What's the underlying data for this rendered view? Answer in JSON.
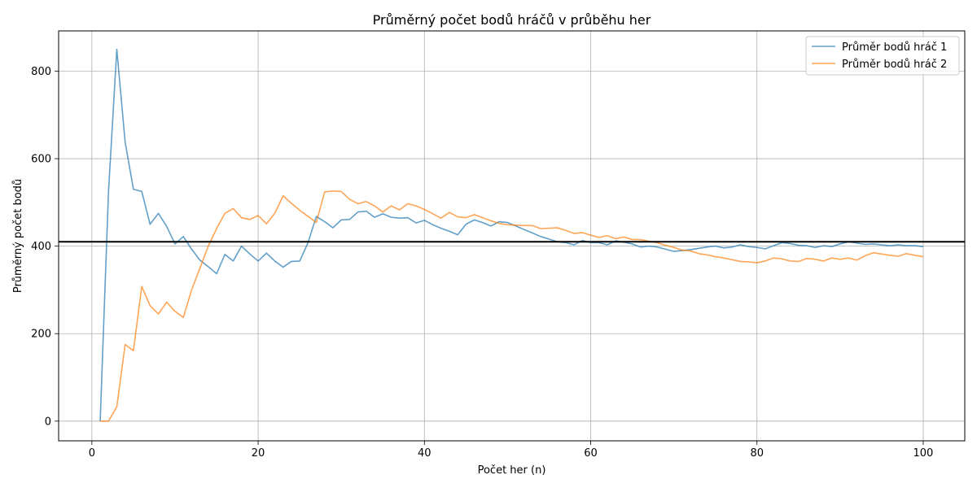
{
  "chart_data": {
    "type": "line",
    "title": "Průměrný počet bodů hráčů v průběhu her",
    "xlabel": "Počet her (n)",
    "ylabel": "Průměrný počet bodů",
    "xlim": [
      -4,
      105
    ],
    "ylim": [
      -45,
      892
    ],
    "xticks": [
      0,
      20,
      40,
      60,
      80,
      100
    ],
    "yticks": [
      0,
      200,
      400,
      600,
      800
    ],
    "grid": true,
    "legend_position": "top-right",
    "reference_line": {
      "y": 410,
      "color": "#000000"
    },
    "x": [
      1,
      2,
      3,
      4,
      5,
      6,
      7,
      8,
      9,
      10,
      11,
      12,
      13,
      14,
      15,
      16,
      17,
      18,
      19,
      20,
      21,
      22,
      23,
      24,
      25,
      26,
      27,
      28,
      29,
      30,
      31,
      32,
      33,
      34,
      35,
      36,
      37,
      38,
      39,
      40,
      41,
      42,
      43,
      44,
      45,
      46,
      47,
      48,
      49,
      50,
      51,
      52,
      53,
      54,
      55,
      56,
      57,
      58,
      59,
      60,
      61,
      62,
      63,
      64,
      65,
      66,
      67,
      68,
      69,
      70,
      71,
      72,
      73,
      74,
      75,
      76,
      77,
      78,
      79,
      80,
      81,
      82,
      83,
      84,
      85,
      86,
      87,
      88,
      89,
      90,
      91,
      92,
      93,
      94,
      95,
      96,
      97,
      98,
      99,
      100
    ],
    "series": [
      {
        "name": "Průměr bodů hráč 1",
        "color": "#1f77b4",
        "values": [
          0,
          525,
          850,
          638,
          530,
          525,
          450,
          475,
          445,
          405,
          422,
          393,
          368,
          353,
          337,
          381,
          366,
          400,
          382,
          366,
          384,
          366,
          352,
          365,
          366,
          408,
          468,
          456,
          442,
          460,
          461,
          478,
          480,
          466,
          474,
          466,
          464,
          465,
          453,
          459,
          449,
          441,
          434,
          426,
          450,
          460,
          454,
          446,
          456,
          454,
          446,
          438,
          430,
          422,
          416,
          410,
          408,
          403,
          413,
          408,
          408,
          403,
          412,
          409,
          405,
          398,
          400,
          398,
          393,
          388,
          390,
          392,
          395,
          398,
          400,
          396,
          398,
          403,
          399,
          397,
          394,
          401,
          408,
          406,
          402,
          401,
          397,
          401,
          399,
          405,
          410,
          407,
          404,
          405,
          403,
          401,
          403,
          401,
          401,
          399
        ]
      },
      {
        "name": "Průměr bodů hráč 2",
        "color": "#ff7f0e",
        "values": [
          0,
          0,
          33,
          175,
          161,
          308,
          264,
          245,
          272,
          251,
          237,
          300,
          350,
          400,
          440,
          475,
          486,
          465,
          461,
          470,
          451,
          475,
          515,
          498,
          482,
          468,
          454,
          524,
          526,
          525,
          507,
          497,
          502,
          492,
          478,
          492,
          483,
          497,
          492,
          484,
          474,
          464,
          477,
          467,
          465,
          472,
          465,
          458,
          452,
          449,
          448,
          447,
          447,
          440,
          441,
          442,
          436,
          429,
          431,
          425,
          420,
          424,
          417,
          421,
          415,
          415,
          411,
          408,
          402,
          397,
          391,
          389,
          383,
          380,
          376,
          373,
          369,
          365,
          364,
          362,
          366,
          373,
          371,
          366,
          365,
          372,
          370,
          366,
          373,
          370,
          373,
          368,
          378,
          385,
          382,
          379,
          377,
          383,
          379,
          376
        ]
      }
    ]
  }
}
